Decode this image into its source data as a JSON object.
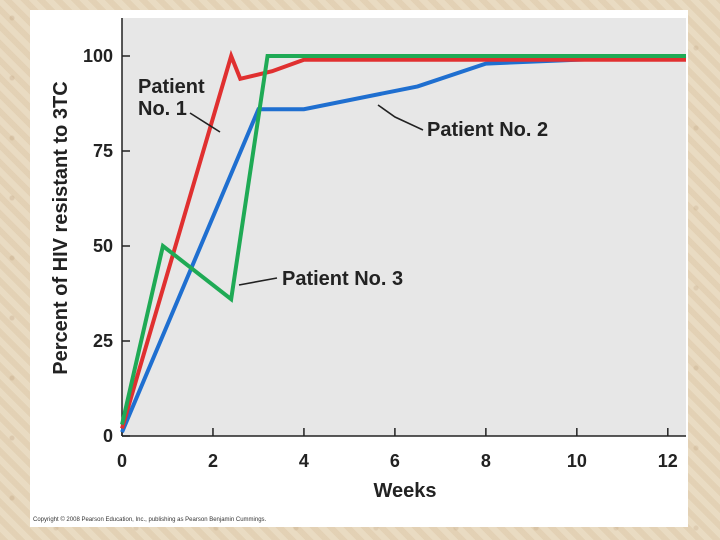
{
  "chart_data": {
    "type": "line",
    "title": "",
    "xlabel": "Weeks",
    "ylabel": "Percent of HIV resistant to 3TC",
    "xlim": [
      0,
      12.4
    ],
    "ylim": [
      0,
      110
    ],
    "xticks": [
      0,
      2,
      4,
      6,
      8,
      10,
      12
    ],
    "yticks": [
      0,
      25,
      50,
      75,
      100
    ],
    "grid": false,
    "series": [
      {
        "name": "Patient No. 1",
        "color": "#e03030",
        "x": [
          0,
          2.4,
          2.6,
          3.3,
          4,
          12.4
        ],
        "y": [
          2,
          100,
          94,
          96,
          99,
          99
        ]
      },
      {
        "name": "Patient No. 2",
        "color": "#1f6fd0",
        "x": [
          0,
          3,
          4,
          6.5,
          8,
          10,
          12.4
        ],
        "y": [
          1,
          86,
          86,
          92,
          98,
          99,
          100
        ]
      },
      {
        "name": "Patient No. 3",
        "color": "#1faa55",
        "x": [
          0,
          0.9,
          2.4,
          3.2,
          4,
          12.4
        ],
        "y": [
          3,
          50,
          36,
          100,
          100,
          100
        ]
      }
    ],
    "annotations": [
      {
        "lines": [
          "Patient",
          "No. 1"
        ],
        "series": 0
      },
      {
        "lines": [
          "Patient No. 2"
        ],
        "series": 1
      },
      {
        "lines": [
          "Patient No. 3"
        ],
        "series": 2
      }
    ]
  },
  "copyright": "Copyright © 2008 Pearson Education, Inc., publishing as Pearson Benjamin Cummings."
}
